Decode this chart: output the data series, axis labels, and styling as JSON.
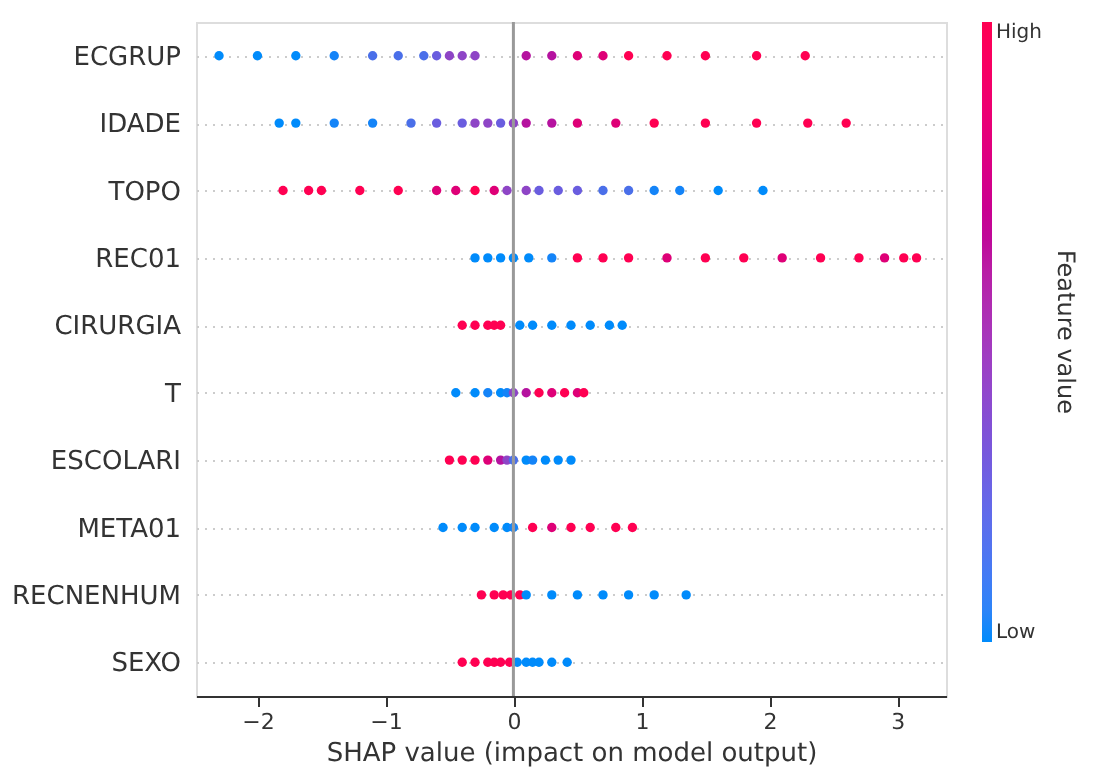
{
  "chart_data": {
    "type": "scatter",
    "orientation": "horizontal",
    "xlabel": "SHAP value (impact on model output)",
    "legend_title": "Feature value",
    "categories": [
      "ECGRUP",
      "IDADE",
      "TOPO",
      "REC01",
      "CIRURGIA",
      "T",
      "ESCOLARI",
      "META01",
      "RECNENHUM",
      "SEXO"
    ],
    "xlim": [
      -2.48,
      3.38
    ],
    "xticks": [
      -2,
      -1,
      0,
      1,
      2,
      3
    ],
    "clim": [
      0,
      1
    ],
    "cticks": [
      {
        "value": 0,
        "label": "Low"
      },
      {
        "value": 1,
        "label": "High"
      }
    ],
    "grid": "y",
    "ref_lines": [
      {
        "axis": "x",
        "value": 0,
        "color": "#999999"
      }
    ],
    "series": [
      {
        "x": [
          "ECGRUP",
          "ECGRUP",
          "ECGRUP",
          "ECGRUP",
          "ECGRUP",
          "ECGRUP",
          "ECGRUP",
          "ECGRUP",
          "ECGRUP",
          "ECGRUP",
          "ECGRUP",
          "ECGRUP",
          "ECGRUP",
          "ECGRUP",
          "ECGRUP",
          "ECGRUP",
          "ECGRUP",
          "ECGRUP",
          "ECGRUP",
          "ECGRUP"
        ],
        "values": [
          -2.3,
          -2.0,
          -1.7,
          -1.4,
          -1.1,
          -0.9,
          -0.7,
          -0.6,
          -0.5,
          -0.4,
          -0.3,
          0.1,
          0.3,
          0.5,
          0.7,
          0.9,
          1.2,
          1.5,
          1.9,
          2.28
        ],
        "colors": [
          "#008bfb",
          "#008bfb",
          "#008bfb",
          "#1484f8",
          "#4a6fe9",
          "#4a6fe9",
          "#4a6fe9",
          "#6a5ddf",
          "#8e45c6",
          "#8e45c6",
          "#8e45c6",
          "#b5129f",
          "#b5129f",
          "#de0077",
          "#de0077",
          "#ff0052",
          "#ff0052",
          "#ff0052",
          "#ff0052",
          "#ff0052"
        ]
      },
      {
        "x": [
          "IDADE",
          "IDADE",
          "IDADE",
          "IDADE",
          "IDADE",
          "IDADE",
          "IDADE",
          "IDADE",
          "IDADE",
          "IDADE",
          "IDADE",
          "IDADE",
          "IDADE",
          "IDADE",
          "IDADE",
          "IDADE",
          "IDADE",
          "IDADE",
          "IDADE",
          "IDADE"
        ],
        "values": [
          -1.83,
          -1.7,
          -1.4,
          -1.1,
          -0.8,
          -0.6,
          -0.4,
          -0.3,
          -0.2,
          -0.1,
          0.0,
          0.1,
          0.3,
          0.5,
          0.8,
          1.1,
          1.5,
          1.9,
          2.3,
          2.6
        ],
        "colors": [
          "#008bfb",
          "#008bfb",
          "#1484f8",
          "#1484f8",
          "#4a6fe9",
          "#6a5ddf",
          "#6a5ddf",
          "#8e45c6",
          "#8e45c6",
          "#6a5ddf",
          "#8e45c6",
          "#b5129f",
          "#b5129f",
          "#de0077",
          "#de0077",
          "#ff0052",
          "#ff0052",
          "#ff0052",
          "#ff0052",
          "#ff0052"
        ]
      },
      {
        "x": [
          "TOPO",
          "TOPO",
          "TOPO",
          "TOPO",
          "TOPO",
          "TOPO",
          "TOPO",
          "TOPO",
          "TOPO",
          "TOPO",
          "TOPO",
          "TOPO",
          "TOPO",
          "TOPO",
          "TOPO",
          "TOPO",
          "TOPO",
          "TOPO",
          "TOPO",
          "TOPO"
        ],
        "values": [
          -1.8,
          -1.6,
          -1.5,
          -1.2,
          -0.9,
          -0.6,
          -0.45,
          -0.3,
          -0.15,
          -0.05,
          0.1,
          0.2,
          0.35,
          0.5,
          0.7,
          0.9,
          1.1,
          1.3,
          1.6,
          1.95
        ],
        "colors": [
          "#ff0052",
          "#ff0052",
          "#ff0052",
          "#ff0052",
          "#ff0052",
          "#de0077",
          "#de0077",
          "#ff0052",
          "#de0077",
          "#8e45c6",
          "#8e45c6",
          "#6a5ddf",
          "#6a5ddf",
          "#6a5ddf",
          "#4a6fe9",
          "#4a6fe9",
          "#1484f8",
          "#1484f8",
          "#008bfb",
          "#008bfb"
        ]
      },
      {
        "x": [
          "REC01",
          "REC01",
          "REC01",
          "REC01",
          "REC01",
          "REC01",
          "REC01",
          "REC01",
          "REC01",
          "REC01",
          "REC01",
          "REC01",
          "REC01",
          "REC01",
          "REC01",
          "REC01",
          "REC01",
          "REC01"
        ],
        "values": [
          -0.3,
          -0.2,
          -0.1,
          0.0,
          0.12,
          0.3,
          0.5,
          0.7,
          0.9,
          1.2,
          1.5,
          1.8,
          2.1,
          2.4,
          2.7,
          2.9,
          3.05,
          3.15
        ],
        "colors": [
          "#008bfb",
          "#008bfb",
          "#008bfb",
          "#008bfb",
          "#008bfb",
          "#1484f8",
          "#ff0052",
          "#ff0052",
          "#ff0052",
          "#de0077",
          "#ff0052",
          "#ff0052",
          "#de0077",
          "#ff0052",
          "#ff0052",
          "#de0077",
          "#ff0052",
          "#ff0052"
        ]
      },
      {
        "x": [
          "CIRURGIA",
          "CIRURGIA",
          "CIRURGIA",
          "CIRURGIA",
          "CIRURGIA",
          "CIRURGIA",
          "CIRURGIA",
          "CIRURGIA",
          "CIRURGIA",
          "CIRURGIA",
          "CIRURGIA",
          "CIRURGIA"
        ],
        "values": [
          -0.4,
          -0.3,
          -0.2,
          -0.15,
          -0.1,
          0.05,
          0.15,
          0.3,
          0.45,
          0.6,
          0.75,
          0.85
        ],
        "colors": [
          "#ff0052",
          "#ff0052",
          "#ff0052",
          "#ff0052",
          "#ff0052",
          "#008bfb",
          "#008bfb",
          "#008bfb",
          "#008bfb",
          "#008bfb",
          "#008bfb",
          "#008bfb"
        ]
      },
      {
        "x": [
          "T",
          "T",
          "T",
          "T",
          "T",
          "T",
          "T",
          "T",
          "T",
          "T",
          "T",
          "T"
        ],
        "values": [
          -0.45,
          -0.3,
          -0.2,
          -0.1,
          -0.05,
          0.0,
          0.1,
          0.2,
          0.3,
          0.4,
          0.5,
          0.55
        ],
        "colors": [
          "#008bfb",
          "#008bfb",
          "#1484f8",
          "#008bfb",
          "#1484f8",
          "#8e45c6",
          "#b5129f",
          "#ff0052",
          "#de0077",
          "#ff0052",
          "#de0077",
          "#ff0052"
        ]
      },
      {
        "x": [
          "ESCOLARI",
          "ESCOLARI",
          "ESCOLARI",
          "ESCOLARI",
          "ESCOLARI",
          "ESCOLARI",
          "ESCOLARI",
          "ESCOLARI",
          "ESCOLARI",
          "ESCOLARI",
          "ESCOLARI",
          "ESCOLARI"
        ],
        "values": [
          -0.5,
          -0.4,
          -0.3,
          -0.2,
          -0.1,
          -0.05,
          0.0,
          0.1,
          0.15,
          0.25,
          0.35,
          0.45
        ],
        "colors": [
          "#ff0052",
          "#ff0052",
          "#ff0052",
          "#de0077",
          "#b5129f",
          "#8e45c6",
          "#4a6fe9",
          "#008bfb",
          "#1484f8",
          "#008bfb",
          "#008bfb",
          "#008bfb"
        ]
      },
      {
        "x": [
          "META01",
          "META01",
          "META01",
          "META01",
          "META01",
          "META01",
          "META01",
          "META01",
          "META01",
          "META01",
          "META01",
          "META01"
        ],
        "values": [
          -0.55,
          -0.4,
          -0.3,
          -0.15,
          -0.05,
          0.0,
          0.15,
          0.3,
          0.45,
          0.6,
          0.8,
          0.93
        ],
        "colors": [
          "#008bfb",
          "#008bfb",
          "#008bfb",
          "#008bfb",
          "#008bfb",
          "#1484f8",
          "#ff0052",
          "#de0077",
          "#ff0052",
          "#ff0052",
          "#ff0052",
          "#ff0052"
        ]
      },
      {
        "x": [
          "RECNENHUM",
          "RECNENHUM",
          "RECNENHUM",
          "RECNENHUM",
          "RECNENHUM",
          "RECNENHUM",
          "RECNENHUM",
          "RECNENHUM",
          "RECNENHUM",
          "RECNENHUM",
          "RECNENHUM",
          "RECNENHUM"
        ],
        "values": [
          -0.25,
          -0.15,
          -0.08,
          -0.02,
          0.05,
          0.1,
          0.3,
          0.5,
          0.7,
          0.9,
          1.1,
          1.35
        ],
        "colors": [
          "#ff0052",
          "#ff0052",
          "#ff0052",
          "#ff0052",
          "#ff0052",
          "#008bfb",
          "#008bfb",
          "#008bfb",
          "#008bfb",
          "#008bfb",
          "#008bfb",
          "#008bfb"
        ]
      },
      {
        "x": [
          "SEXO",
          "SEXO",
          "SEXO",
          "SEXO",
          "SEXO",
          "SEXO",
          "SEXO",
          "SEXO",
          "SEXO",
          "SEXO",
          "SEXO",
          "SEXO"
        ],
        "values": [
          -0.4,
          -0.3,
          -0.2,
          -0.15,
          -0.1,
          -0.03,
          0.03,
          0.1,
          0.15,
          0.2,
          0.3,
          0.42
        ],
        "colors": [
          "#ff0052",
          "#ff0052",
          "#ff0052",
          "#ff0052",
          "#ff0052",
          "#ff0052",
          "#008bfb",
          "#008bfb",
          "#008bfb",
          "#008bfb",
          "#008bfb",
          "#008bfb"
        ]
      }
    ]
  }
}
